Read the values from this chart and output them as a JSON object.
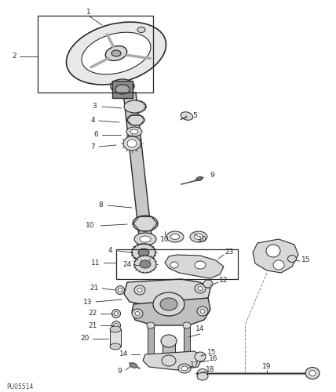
{
  "bg_color": "#ffffff",
  "line_color": "#2a2a2a",
  "part_fill": "#d8d8d8",
  "part_dark": "#555555",
  "fig_width": 4.28,
  "fig_height": 5.0,
  "dpi": 100,
  "label_fs": 6.5,
  "footnote": "PU05514"
}
